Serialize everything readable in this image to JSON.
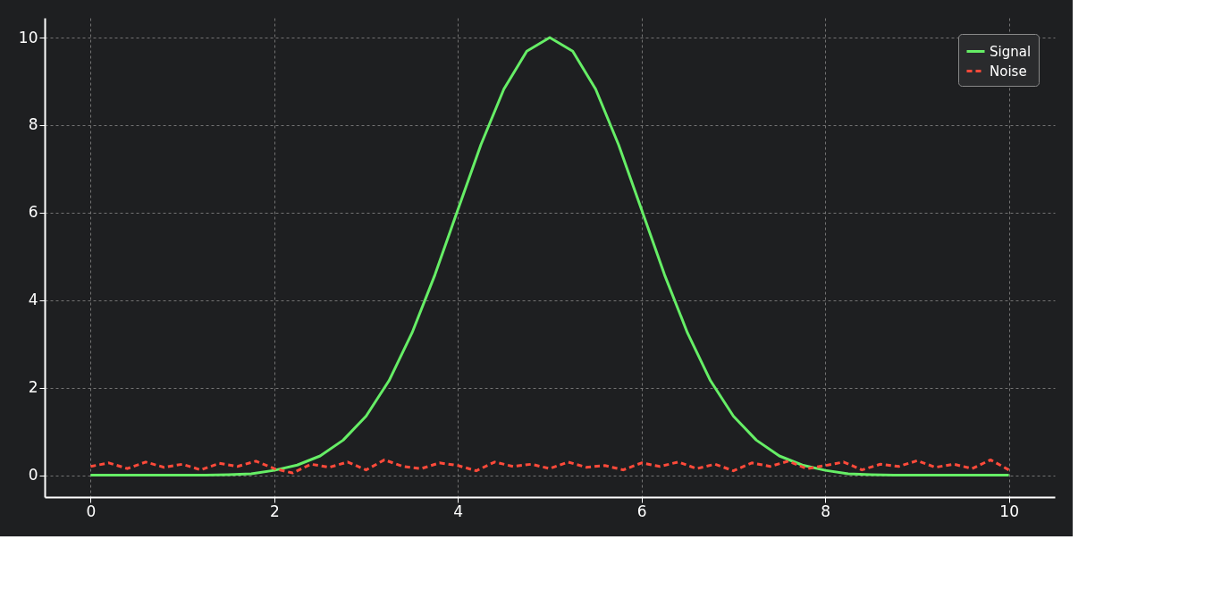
{
  "chart_data": {
    "type": "line",
    "xlim": [
      -0.5,
      10.5
    ],
    "ylim": [
      -0.5,
      10.45
    ],
    "xticks": [
      0,
      2,
      4,
      6,
      8,
      10
    ],
    "yticks": [
      0,
      2,
      4,
      6,
      8,
      10
    ],
    "grid": true,
    "legend": "top right",
    "series": [
      {
        "name": "Signal",
        "color": "#66ee66",
        "line_style": "solid",
        "x": [
          0,
          0.25,
          0.5,
          0.75,
          1,
          1.25,
          1.5,
          1.75,
          2,
          2.25,
          2.5,
          2.75,
          3,
          3.25,
          3.5,
          3.75,
          4,
          4.25,
          4.5,
          4.75,
          5,
          5.25,
          5.5,
          5.75,
          6,
          6.25,
          6.5,
          6.75,
          7,
          7.25,
          7.5,
          7.75,
          8,
          8.25,
          8.5,
          8.75,
          9,
          9.25,
          9.5,
          9.75,
          10
        ],
        "values": [
          0,
          0,
          0,
          0,
          0,
          0,
          0.01,
          0.03,
          0.11,
          0.23,
          0.44,
          0.8,
          1.35,
          2.16,
          3.25,
          4.58,
          6.07,
          7.55,
          8.82,
          9.69,
          10,
          9.69,
          8.82,
          7.55,
          6.07,
          4.58,
          3.25,
          2.16,
          1.35,
          0.8,
          0.44,
          0.23,
          0.11,
          0.03,
          0.01,
          0,
          0,
          0,
          0,
          0,
          0
        ]
      },
      {
        "name": "Noise",
        "color": "#ff4a3a",
        "line_style": "dashed",
        "x": [
          0,
          0.2,
          0.4,
          0.6,
          0.8,
          1,
          1.2,
          1.4,
          1.6,
          1.8,
          2,
          2.2,
          2.4,
          2.6,
          2.8,
          3,
          3.2,
          3.4,
          3.6,
          3.8,
          4,
          4.2,
          4.4,
          4.6,
          4.8,
          5,
          5.2,
          5.4,
          5.6,
          5.8,
          6,
          6.2,
          6.4,
          6.6,
          6.8,
          7,
          7.2,
          7.4,
          7.6,
          7.8,
          8,
          8.2,
          8.4,
          8.6,
          8.8,
          9,
          9.2,
          9.4,
          9.6,
          9.8,
          10
        ],
        "values": [
          0.2,
          0.28,
          0.15,
          0.3,
          0.18,
          0.25,
          0.12,
          0.27,
          0.2,
          0.32,
          0.15,
          0.05,
          0.25,
          0.18,
          0.3,
          0.12,
          0.35,
          0.2,
          0.15,
          0.28,
          0.22,
          0.1,
          0.3,
          0.2,
          0.25,
          0.15,
          0.3,
          0.18,
          0.22,
          0.12,
          0.28,
          0.2,
          0.3,
          0.15,
          0.25,
          0.1,
          0.28,
          0.2,
          0.32,
          0.15,
          0.22,
          0.3,
          0.12,
          0.25,
          0.2,
          0.33,
          0.18,
          0.25,
          0.15,
          0.35,
          0.12
        ]
      }
    ]
  }
}
